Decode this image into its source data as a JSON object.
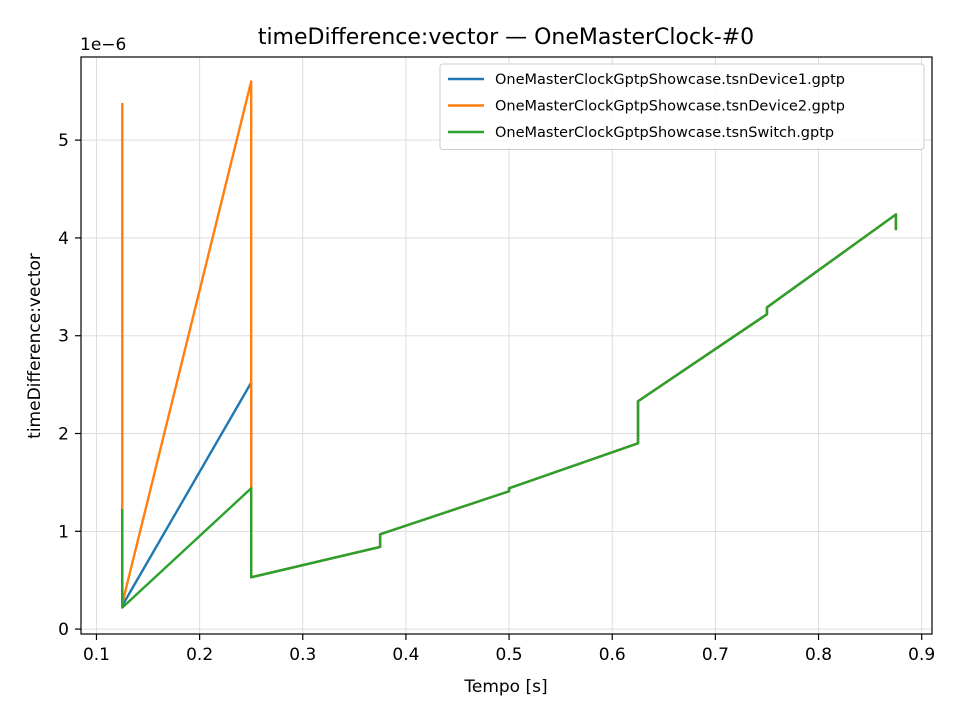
{
  "chart_data": {
    "type": "line",
    "title": "timeDifference:vector — OneMasterClock-#0",
    "xlabel": "Tempo [s]",
    "ylabel": "timeDifference:vector",
    "y_offset_label": "1e−6",
    "xlim": [
      0.085,
      0.91
    ],
    "ylim": [
      -0.05,
      5.85
    ],
    "x_ticks": [
      0.1,
      0.2,
      0.3,
      0.4,
      0.5,
      0.6,
      0.7,
      0.8,
      0.9
    ],
    "x_tick_labels": [
      "0.1",
      "0.2",
      "0.3",
      "0.4",
      "0.5",
      "0.6",
      "0.7",
      "0.8",
      "0.9"
    ],
    "y_ticks": [
      0,
      1,
      2,
      3,
      4,
      5
    ],
    "y_tick_labels": [
      "0",
      "1",
      "2",
      "3",
      "4",
      "5"
    ],
    "y_unit_note": "y values are in units of 1e-6",
    "grid": true,
    "legend_position": "upper right",
    "series": [
      {
        "name": "OneMasterClockGptpShowcase.tsnDevice1.gptp",
        "color": "#1f77b4",
        "points": [
          [
            0.125,
            1.2
          ],
          [
            0.125,
            0.24
          ],
          [
            0.25,
            2.52
          ],
          [
            0.25,
            0.53
          ],
          [
            0.375,
            0.84
          ],
          [
            0.375,
            0.97
          ],
          [
            0.5,
            1.41
          ],
          [
            0.5,
            1.44
          ],
          [
            0.625,
            1.9
          ],
          [
            0.625,
            2.33
          ],
          [
            0.75,
            3.22
          ],
          [
            0.75,
            3.29
          ],
          [
            0.875,
            4.24
          ],
          [
            0.875,
            4.08
          ]
        ]
      },
      {
        "name": "OneMasterClockGptpShowcase.tsnDevice2.gptp",
        "color": "#ff7f0e",
        "points": [
          [
            0.125,
            5.38
          ],
          [
            0.125,
            0.26
          ],
          [
            0.25,
            5.6
          ],
          [
            0.25,
            0.53
          ],
          [
            0.375,
            0.84
          ],
          [
            0.375,
            0.97
          ],
          [
            0.5,
            1.41
          ],
          [
            0.5,
            1.44
          ],
          [
            0.625,
            1.9
          ],
          [
            0.625,
            2.33
          ],
          [
            0.75,
            3.22
          ],
          [
            0.75,
            3.29
          ],
          [
            0.875,
            4.24
          ],
          [
            0.875,
            4.08
          ]
        ]
      },
      {
        "name": "OneMasterClockGptpShowcase.tsnSwitch.gptp",
        "color": "#2ca02c",
        "points": [
          [
            0.125,
            1.23
          ],
          [
            0.125,
            0.22
          ],
          [
            0.25,
            1.44
          ],
          [
            0.25,
            0.53
          ],
          [
            0.375,
            0.84
          ],
          [
            0.375,
            0.97
          ],
          [
            0.5,
            1.41
          ],
          [
            0.5,
            1.44
          ],
          [
            0.625,
            1.9
          ],
          [
            0.625,
            2.33
          ],
          [
            0.75,
            3.22
          ],
          [
            0.75,
            3.29
          ],
          [
            0.875,
            4.24
          ],
          [
            0.875,
            4.08
          ]
        ]
      }
    ]
  }
}
